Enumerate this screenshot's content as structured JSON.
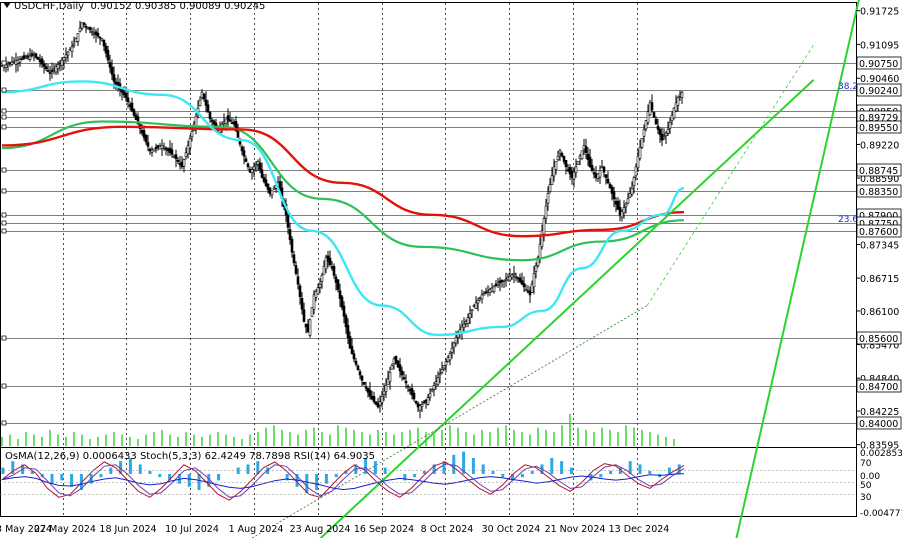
{
  "header": {
    "symbol": "USDCHF,Daily",
    "ohlc": "0.90152 0.90385 0.90089 0.90245"
  },
  "chart_data": {
    "type": "candlestick",
    "symbol": "USDCHF",
    "timeframe": "Daily",
    "price_axis": {
      "ticks": [
        "0.91725",
        "0.91095",
        "0.90460",
        "0.89220",
        "0.88590",
        "0.87345",
        "0.86715",
        "0.86100",
        "0.85470",
        "0.84840",
        "0.84225",
        "0.83595"
      ],
      "range": [
        0.8355,
        0.9187
      ]
    },
    "level_labels": [
      "0.90750",
      "0.90240",
      "0.89850",
      "0.89729",
      "0.89550",
      "0.88745",
      "0.88350",
      "0.87900",
      "0.87750",
      "0.87600",
      "0.85600",
      "0.84700",
      "0.84000"
    ],
    "level_lines": [
      0.9075,
      0.9024,
      0.8985,
      0.8973,
      0.8955,
      0.8875,
      0.8835,
      0.879,
      0.8775,
      0.876,
      0.856,
      0.847,
      0.84
    ],
    "fib_labels": [
      {
        "text": "38.2",
        "price": 0.9024
      },
      {
        "text": "23.6",
        "price": 0.8775
      }
    ],
    "x_labels": [
      "3 May 2024",
      "27 May 2024",
      "18 Jun 2024",
      "10 Jul 2024",
      "1 Aug 2024",
      "23 Aug 2024",
      "16 Sep 2024",
      "8 Oct 2024",
      "30 Oct 2024",
      "21 Nov 2024",
      "13 Dec 2024"
    ],
    "close_path": [
      [
        0,
        0.907
      ],
      [
        8,
        0.908
      ],
      [
        16,
        0.909
      ],
      [
        24,
        0.9055
      ],
      [
        30,
        0.908
      ],
      [
        36,
        0.911
      ],
      [
        40,
        0.915
      ],
      [
        46,
        0.913
      ],
      [
        50,
        0.912
      ],
      [
        56,
        0.904
      ],
      [
        62,
        0.901
      ],
      [
        68,
        0.896
      ],
      [
        74,
        0.891
      ],
      [
        80,
        0.892
      ],
      [
        86,
        0.89
      ],
      [
        90,
        0.888
      ],
      [
        96,
        0.896
      ],
      [
        100,
        0.902
      ],
      [
        104,
        0.897
      ],
      [
        108,
        0.895
      ],
      [
        112,
        0.897
      ],
      [
        116,
        0.896
      ],
      [
        120,
        0.891
      ],
      [
        124,
        0.887
      ],
      [
        128,
        0.889
      ],
      [
        130,
        0.886
      ],
      [
        134,
        0.883
      ],
      [
        138,
        0.885
      ],
      [
        142,
        0.879
      ],
      [
        145,
        0.872
      ],
      [
        148,
        0.866
      ],
      [
        151,
        0.859
      ],
      [
        153,
        0.857
      ],
      [
        156,
        0.864
      ],
      [
        159,
        0.866
      ],
      [
        162,
        0.871
      ],
      [
        165,
        0.869
      ],
      [
        168,
        0.865
      ],
      [
        171,
        0.86
      ],
      [
        174,
        0.854
      ],
      [
        177,
        0.851
      ],
      [
        180,
        0.848
      ],
      [
        184,
        0.845
      ],
      [
        188,
        0.843
      ],
      [
        192,
        0.847
      ],
      [
        196,
        0.852
      ],
      [
        200,
        0.849
      ],
      [
        204,
        0.846
      ],
      [
        208,
        0.843
      ],
      [
        212,
        0.844
      ],
      [
        216,
        0.847
      ],
      [
        220,
        0.85
      ],
      [
        224,
        0.853
      ],
      [
        228,
        0.857
      ],
      [
        232,
        0.859
      ],
      [
        236,
        0.862
      ],
      [
        240,
        0.864
      ],
      [
        244,
        0.865
      ],
      [
        248,
        0.866
      ],
      [
        252,
        0.867
      ],
      [
        256,
        0.868
      ],
      [
        260,
        0.866
      ],
      [
        264,
        0.864
      ],
      [
        266,
        0.868
      ],
      [
        268,
        0.871
      ],
      [
        270,
        0.876
      ],
      [
        273,
        0.883
      ],
      [
        276,
        0.888
      ],
      [
        279,
        0.891
      ],
      [
        282,
        0.888
      ],
      [
        285,
        0.886
      ],
      [
        288,
        0.889
      ],
      [
        291,
        0.892
      ],
      [
        294,
        0.888
      ],
      [
        297,
        0.886
      ],
      [
        300,
        0.888
      ],
      [
        303,
        0.885
      ],
      [
        306,
        0.882
      ],
      [
        309,
        0.879
      ],
      [
        312,
        0.881
      ],
      [
        315,
        0.884
      ],
      [
        318,
        0.89
      ],
      [
        321,
        0.895
      ],
      [
        324,
        0.9
      ],
      [
        327,
        0.896
      ],
      [
        330,
        0.893
      ],
      [
        333,
        0.895
      ],
      [
        336,
        0.899
      ],
      [
        338,
        0.901
      ],
      [
        341,
        0.9024
      ]
    ],
    "ma_200": [
      [
        0,
        0.892
      ],
      [
        60,
        0.8955
      ],
      [
        120,
        0.895
      ],
      [
        170,
        0.885
      ],
      [
        215,
        0.879
      ],
      [
        260,
        0.875
      ],
      [
        300,
        0.8762
      ],
      [
        341,
        0.8795
      ]
    ],
    "ma_144": [
      [
        0,
        0.8915
      ],
      [
        50,
        0.8965
      ],
      [
        110,
        0.8955
      ],
      [
        160,
        0.882
      ],
      [
        210,
        0.873
      ],
      [
        260,
        0.8705
      ],
      [
        300,
        0.874
      ],
      [
        341,
        0.878
      ]
    ],
    "ma_50": [
      [
        0,
        0.902
      ],
      [
        40,
        0.904
      ],
      [
        80,
        0.9015
      ],
      [
        120,
        0.893
      ],
      [
        155,
        0.876
      ],
      [
        190,
        0.862
      ],
      [
        218,
        0.8565
      ],
      [
        250,
        0.858
      ],
      [
        270,
        0.861
      ],
      [
        290,
        0.869
      ],
      [
        310,
        0.876
      ],
      [
        330,
        0.879
      ],
      [
        341,
        0.884
      ]
    ],
    "channel_upper": [
      [
        0.8555,
        0.815
      ],
      [
        1.004,
        0.9198
      ]
    ],
    "channel_mid_solid": [
      [
        0.2582,
        0.815
      ],
      [
        0.756,
        0.862
      ]
    ],
    "channel_mid_dotted": [
      [
        0.756,
        0.862
      ],
      [
        0.9523,
        0.9113
      ]
    ],
    "channel_lower": [
      [
        0.3516,
        0.815
      ],
      [
        0.9505,
        0.9043
      ]
    ],
    "volume": [
      4,
      5,
      3,
      6,
      5,
      4,
      7,
      5,
      4,
      6,
      5,
      3,
      4,
      5,
      6,
      5,
      4,
      3,
      5,
      6,
      7,
      5,
      4,
      6,
      5,
      4,
      5,
      6,
      5,
      4,
      3,
      5,
      6,
      8,
      9,
      7,
      6,
      5,
      7,
      8,
      6,
      5,
      9,
      8,
      7,
      6,
      5,
      7,
      6,
      5,
      6,
      7,
      8,
      6,
      5,
      7,
      9,
      8,
      6,
      5,
      7,
      6,
      8,
      9,
      7,
      6,
      5,
      8,
      7,
      6,
      9,
      14,
      8,
      7,
      6,
      8,
      7,
      6,
      9,
      8,
      7,
      6,
      5,
      4,
      3
    ],
    "indicator": {
      "label": "OsMA(12,26,9) 0.0006433  Stoch(5,3,3) 62.4249 78.7898  RSI(14) 64.9035",
      "ticks": [
        "0.0028532",
        "70",
        "0.00",
        "50",
        "30",
        "-0.004771"
      ],
      "osma": [
        2,
        4,
        3,
        1,
        -1,
        -3,
        -2,
        -4,
        -5,
        -3,
        -1,
        2,
        4,
        5,
        3,
        1,
        -1,
        -2,
        -3,
        -4,
        -5,
        -4,
        -2,
        0,
        2,
        3,
        4,
        2,
        0,
        -2,
        -4,
        -6,
        -5,
        -3,
        -1,
        1,
        3,
        5,
        4,
        2,
        0,
        -2,
        -1,
        1,
        3,
        4,
        6,
        7,
        5,
        3,
        1,
        -1,
        -2,
        -1,
        1,
        3,
        5,
        4,
        2,
        0,
        -2,
        -1,
        1,
        2,
        4,
        3,
        1,
        -1,
        2,
        3
      ],
      "stoch": [
        55,
        70,
        80,
        65,
        40,
        25,
        30,
        50,
        70,
        85,
        75,
        55,
        35,
        25,
        40,
        60,
        80,
        70,
        50,
        30,
        20,
        35,
        55,
        75,
        85,
        70,
        50,
        30,
        25,
        45,
        65,
        80,
        70,
        50,
        35,
        25,
        40,
        60,
        78,
        85,
        72,
        55,
        40,
        30,
        45,
        65,
        80,
        75,
        60,
        45,
        35,
        50,
        70,
        82,
        78,
        62,
        48,
        40,
        55,
        68,
        79
      ],
      "rsi": [
        55,
        58,
        60,
        57,
        50,
        45,
        44,
        47,
        52,
        56,
        58,
        54,
        49,
        46,
        48,
        53,
        57,
        55,
        51,
        46,
        42,
        40,
        43,
        48,
        53,
        56,
        54,
        50,
        46,
        41,
        38,
        40,
        45,
        50,
        54,
        57,
        55,
        52,
        49,
        47,
        50,
        54,
        58,
        60,
        58,
        55,
        52,
        49,
        51,
        55,
        59,
        61,
        59,
        56,
        54,
        56,
        60,
        63,
        62,
        64,
        65
      ]
    },
    "colors": {
      "candle": "#000000",
      "ma_200": "#e3120b",
      "ma_144": "#2ec05a",
      "ma_50": "#3fe6f4",
      "channel": "#2bd42b",
      "volume": "#2bcf2b",
      "osma": "#2aa8e8",
      "stoch": "#1520d0",
      "rsi": "#b0172a"
    }
  }
}
